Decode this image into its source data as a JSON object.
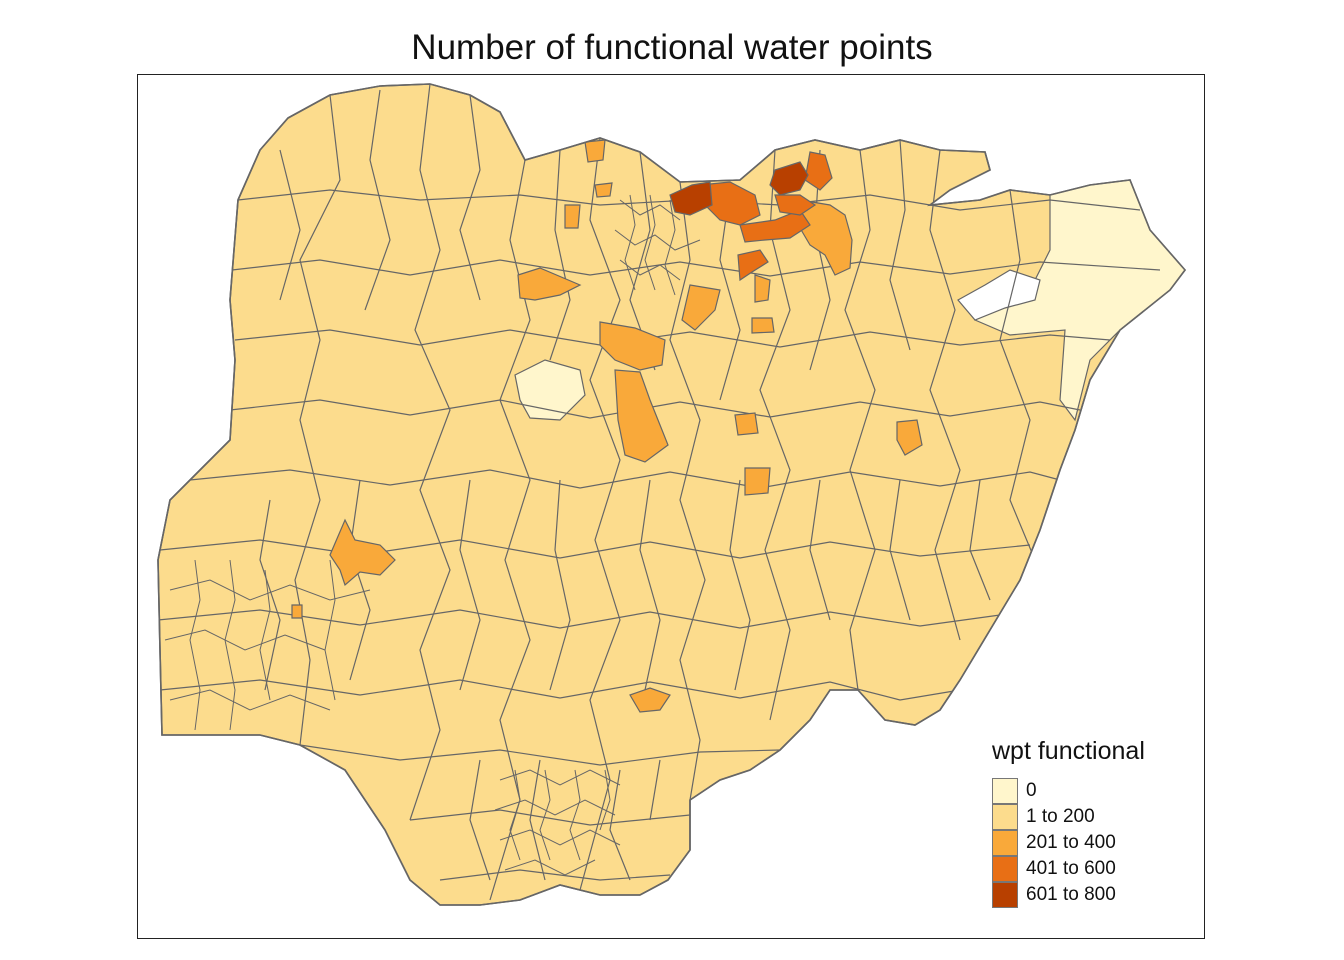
{
  "map": {
    "title": "Number of functional water points"
  },
  "legend": {
    "title": "wpt functional",
    "classes": [
      {
        "label": "0",
        "color": "#fff6cc"
      },
      {
        "label": "1 to 200",
        "color": "#fcdc8d"
      },
      {
        "label": "201 to 400",
        "color": "#f9a93a"
      },
      {
        "label": "401 to 600",
        "color": "#e86f15"
      },
      {
        "label": "601 to 800",
        "color": "#b84000"
      }
    ]
  },
  "colors": {
    "border": "#666666",
    "frame": "#222222"
  }
}
